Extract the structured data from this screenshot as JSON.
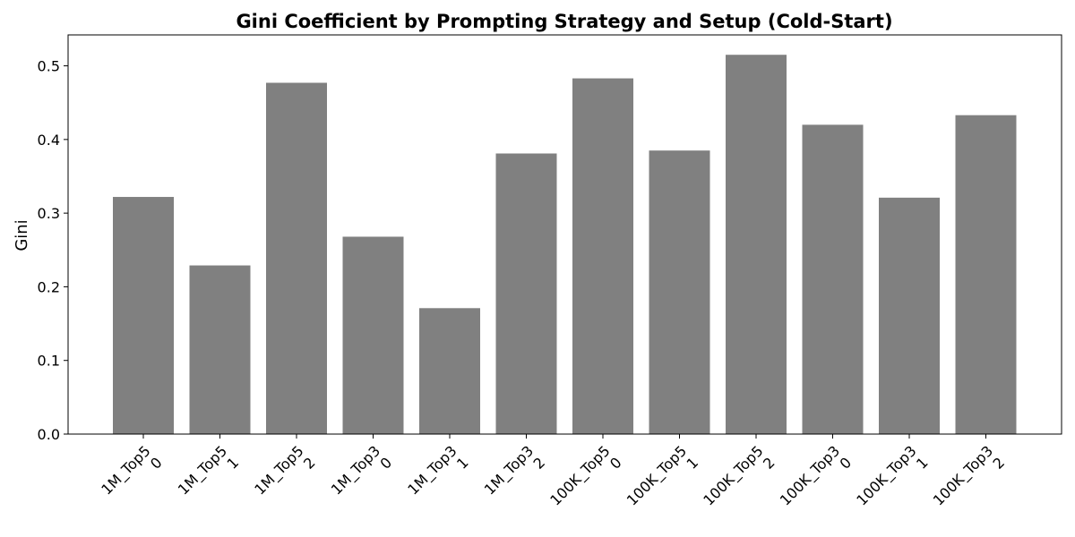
{
  "chart_data": {
    "type": "bar",
    "title": "Gini Coefficient by Prompting Strategy and Setup (Cold-Start)",
    "xlabel": "",
    "ylabel": "Gini",
    "ylim": [
      0,
      0.542
    ],
    "yticks": [
      "0.0",
      "0.1",
      "0.2",
      "0.3",
      "0.4",
      "0.5"
    ],
    "categories": [
      [
        "1M_Top5",
        "0"
      ],
      [
        "1M_Top5",
        "1"
      ],
      [
        "1M_Top5",
        "2"
      ],
      [
        "1M_Top3",
        "0"
      ],
      [
        "1M_Top3",
        "1"
      ],
      [
        "1M_Top3",
        "2"
      ],
      [
        "100K_Top5",
        "0"
      ],
      [
        "100K_Top5",
        "1"
      ],
      [
        "100K_Top5",
        "2"
      ],
      [
        "100K_Top3",
        "0"
      ],
      [
        "100K_Top3",
        "1"
      ],
      [
        "100K_Top3",
        "2"
      ]
    ],
    "values": [
      0.322,
      0.229,
      0.477,
      0.268,
      0.171,
      0.381,
      0.483,
      0.385,
      0.515,
      0.42,
      0.321,
      0.433
    ],
    "bar_color": "#808080",
    "grid": false,
    "legend": "none"
  }
}
